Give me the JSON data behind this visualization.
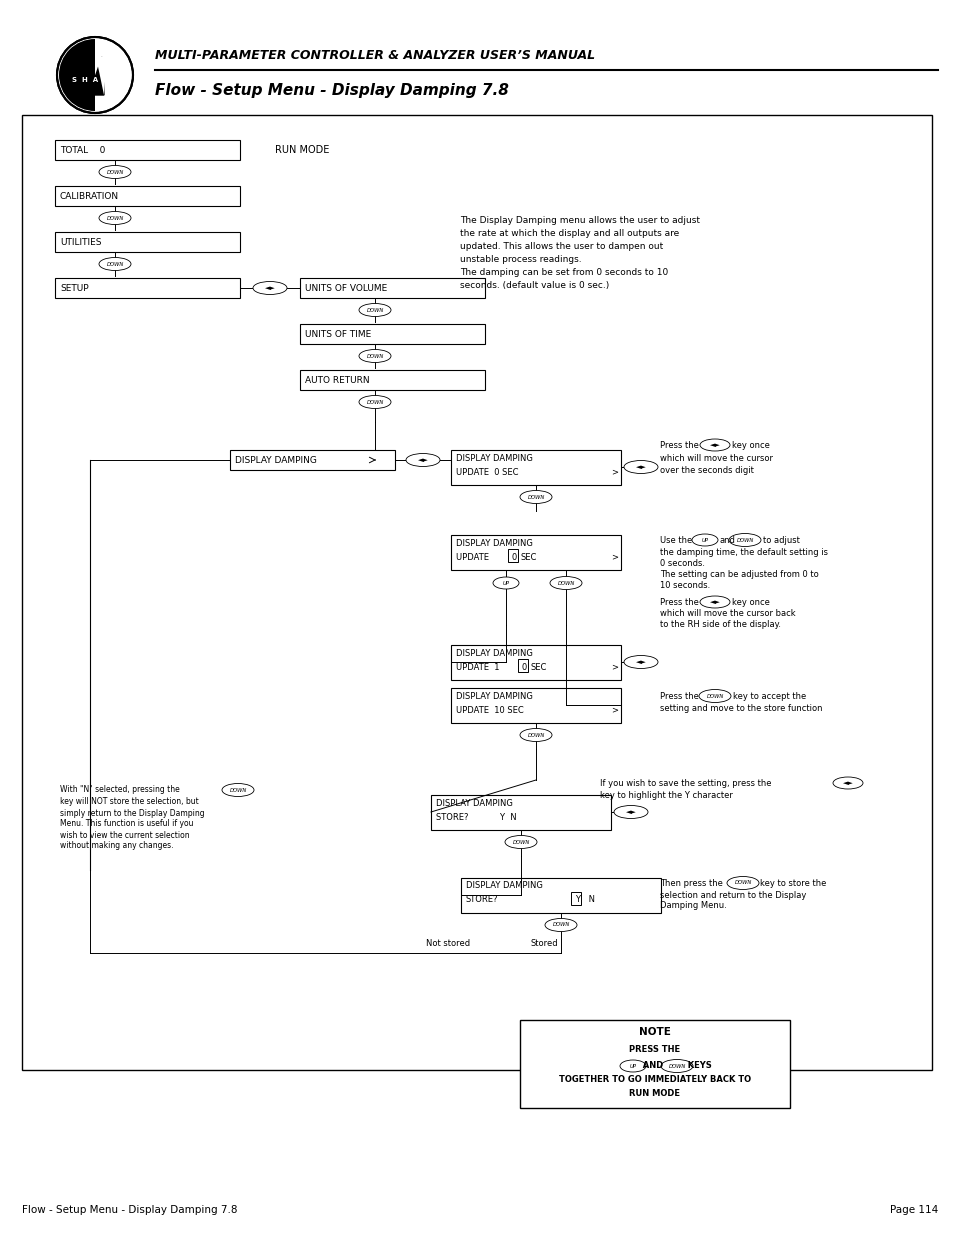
{
  "title_main": "MULTI-PARAMETER CONTROLLER & ANALYZER USER’S MANUAL",
  "title_sub": "Flow - Setup Menu - Display Damping 7.8",
  "footer_left": "Flow - Setup Menu - Display Damping 7.8",
  "footer_right": "Page 114",
  "bg_color": "#ffffff",
  "desc_text": "The Display Damping menu allows the user to adjust\nthe rate at which the display and all outputs are\nupdated. This allows the user to dampen out\nunstable process readings.\nThe damping can be set from 0 seconds to 10\nseconds. (default value is 0 sec.)"
}
